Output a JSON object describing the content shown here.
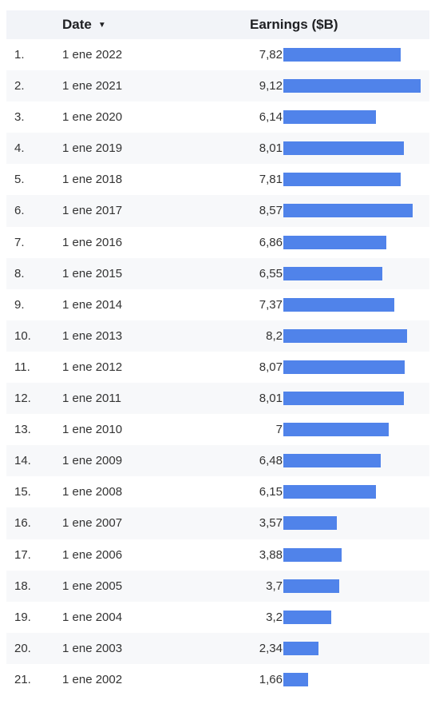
{
  "header": {
    "date_label": "Date",
    "date_sort_icon": "sort-down-icon",
    "earnings_label": "Earnings ($B)"
  },
  "colors": {
    "bar": "#5083ea",
    "header_bg": "#f2f4f8",
    "alt_row_bg": "#f7f8fa"
  },
  "chart_data": {
    "type": "table",
    "columns": [
      "",
      "Date",
      "Earnings ($B)"
    ],
    "bar_max": 9.12,
    "rows": [
      {
        "rank": "1.",
        "date": "1 ene 2022",
        "label": "7,82",
        "value": 7.82
      },
      {
        "rank": "2.",
        "date": "1 ene 2021",
        "label": "9,12",
        "value": 9.12
      },
      {
        "rank": "3.",
        "date": "1 ene 2020",
        "label": "6,14",
        "value": 6.14
      },
      {
        "rank": "4.",
        "date": "1 ene 2019",
        "label": "8,01",
        "value": 8.01
      },
      {
        "rank": "5.",
        "date": "1 ene 2018",
        "label": "7,81",
        "value": 7.81
      },
      {
        "rank": "6.",
        "date": "1 ene 2017",
        "label": "8,57",
        "value": 8.57
      },
      {
        "rank": "7.",
        "date": "1 ene 2016",
        "label": "6,86",
        "value": 6.86
      },
      {
        "rank": "8.",
        "date": "1 ene 2015",
        "label": "6,55",
        "value": 6.55
      },
      {
        "rank": "9.",
        "date": "1 ene 2014",
        "label": "7,37",
        "value": 7.37
      },
      {
        "rank": "10.",
        "date": "1 ene 2013",
        "label": "8,2",
        "value": 8.2
      },
      {
        "rank": "11.",
        "date": "1 ene 2012",
        "label": "8,07",
        "value": 8.07
      },
      {
        "rank": "12.",
        "date": "1 ene 2011",
        "label": "8,01",
        "value": 8.01
      },
      {
        "rank": "13.",
        "date": "1 ene 2010",
        "label": "7",
        "value": 7
      },
      {
        "rank": "14.",
        "date": "1 ene 2009",
        "label": "6,48",
        "value": 6.48
      },
      {
        "rank": "15.",
        "date": "1 ene 2008",
        "label": "6,15",
        "value": 6.15
      },
      {
        "rank": "16.",
        "date": "1 ene 2007",
        "label": "3,57",
        "value": 3.57
      },
      {
        "rank": "17.",
        "date": "1 ene 2006",
        "label": "3,88",
        "value": 3.88
      },
      {
        "rank": "18.",
        "date": "1 ene 2005",
        "label": "3,7",
        "value": 3.7
      },
      {
        "rank": "19.",
        "date": "1 ene 2004",
        "label": "3,2",
        "value": 3.2
      },
      {
        "rank": "20.",
        "date": "1 ene 2003",
        "label": "2,34",
        "value": 2.34
      },
      {
        "rank": "21.",
        "date": "1 ene 2002",
        "label": "1,66",
        "value": 1.66
      }
    ]
  }
}
